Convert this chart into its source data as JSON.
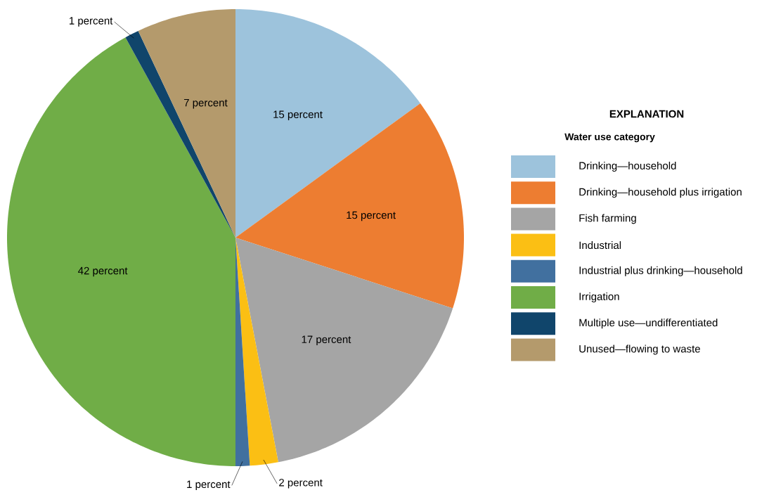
{
  "chart_data": {
    "type": "pie",
    "title": "EXPLANATION",
    "legend_title": "Water use category",
    "categories": [
      "Drinking—household",
      "Drinking—household plus irrigation",
      "Fish farming",
      "Industrial",
      "Industrial plus drinking—household",
      "Irrigation",
      "Multiple use—undifferentiated",
      "Unused—flowing to waste"
    ],
    "values": [
      15,
      15,
      17,
      2,
      1,
      42,
      1,
      7
    ],
    "value_labels": [
      "15 percent",
      "15 percent",
      "17 percent",
      "2 percent",
      "1 percent",
      "42 percent",
      "1 percent",
      "7 percent"
    ],
    "colors": [
      "#9dc3dc",
      "#ed7d31",
      "#a5a5a5",
      "#fbbf14",
      "#41709f",
      "#70ad47",
      "#10456b",
      "#b49a6c"
    ],
    "legend": "right"
  }
}
